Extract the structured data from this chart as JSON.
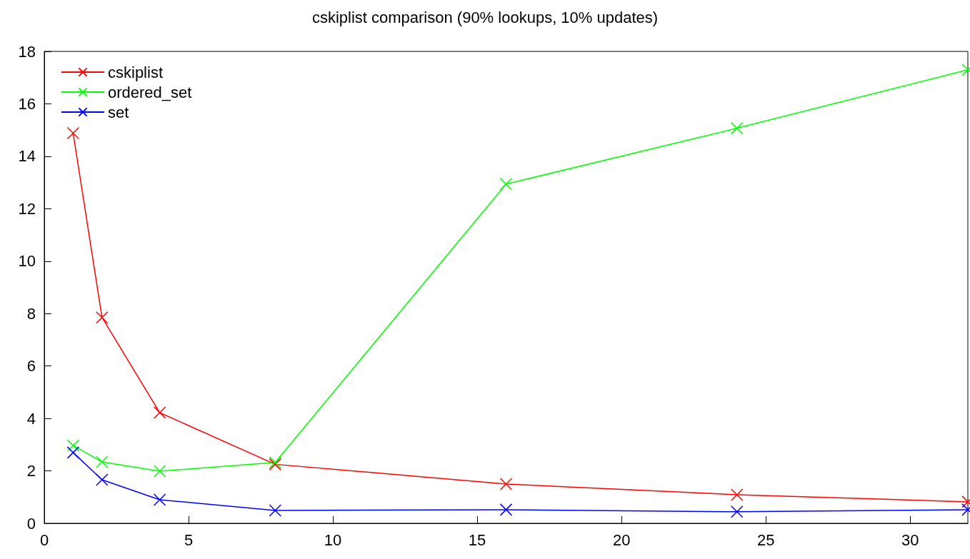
{
  "chart_data": {
    "type": "line",
    "title": "cskiplist comparison (90% lookups, 10% updates)",
    "x": [
      1,
      2,
      4,
      8,
      16,
      24,
      32
    ],
    "series": [
      {
        "name": "cskiplist",
        "color": "#ff0000",
        "marker": "cross",
        "values": [
          14.88,
          7.85,
          4.22,
          2.25,
          1.5,
          1.09,
          0.82
        ]
      },
      {
        "name": "ordered_set",
        "color": "#00ff00",
        "marker": "cross",
        "values": [
          2.97,
          2.34,
          1.99,
          2.32,
          12.94,
          15.07,
          17.3
        ]
      },
      {
        "name": "set",
        "color": "#0000ff",
        "marker": "cross",
        "values": [
          2.7,
          1.66,
          0.9,
          0.49,
          0.52,
          0.44,
          0.52
        ]
      }
    ],
    "xlim": [
      0,
      32
    ],
    "xticks": [
      0,
      5,
      10,
      15,
      20,
      25,
      30
    ],
    "ylim": [
      0,
      18
    ],
    "yticks": [
      0,
      2,
      4,
      6,
      8,
      10,
      12,
      14,
      16,
      18
    ],
    "grid": false,
    "legend": "top left",
    "line_style": "solid"
  }
}
